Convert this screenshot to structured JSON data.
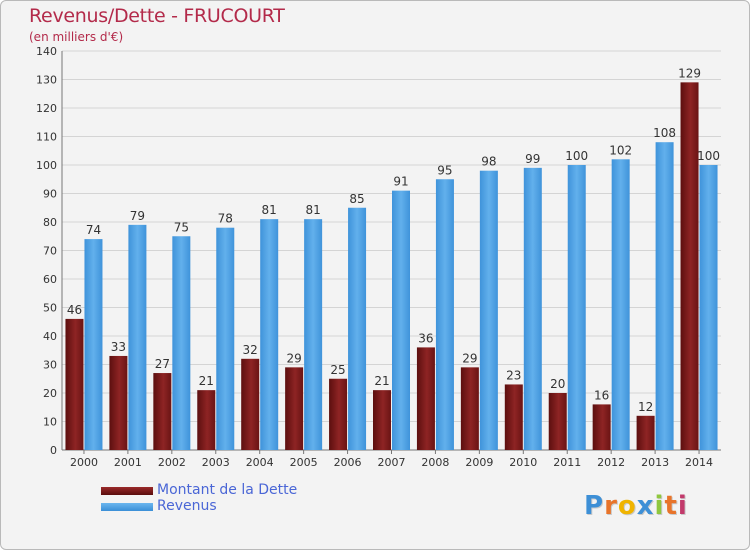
{
  "chart_data": {
    "type": "bar",
    "title": "Revenus/Dette - FRUCOURT",
    "subtitle": "(en milliers d'€)",
    "categories": [
      "2000",
      "2001",
      "2002",
      "2003",
      "2004",
      "2005",
      "2006",
      "2007",
      "2008",
      "2009",
      "2010",
      "2011",
      "2012",
      "2013",
      "2014"
    ],
    "series": [
      {
        "name": "Montant de la Dette",
        "color": "#7a1c1c",
        "values": [
          46,
          33,
          27,
          21,
          32,
          29,
          25,
          21,
          36,
          29,
          23,
          20,
          16,
          12,
          129
        ]
      },
      {
        "name": "Revenus",
        "color": "#4da3e6",
        "values": [
          74,
          79,
          75,
          78,
          81,
          81,
          85,
          91,
          95,
          98,
          99,
          100,
          102,
          108,
          100
        ]
      }
    ],
    "ylim": [
      0,
      140
    ],
    "yticks": [
      0,
      10,
      20,
      30,
      40,
      50,
      60,
      70,
      80,
      90,
      100,
      110,
      120,
      130,
      140
    ],
    "grid": true,
    "legend_position": "bottom-left"
  },
  "logo": {
    "letters": [
      "P",
      "r",
      "o",
      "x",
      "i",
      "t",
      "i"
    ],
    "colors": [
      "#3d8fd6",
      "#e8742a",
      "#f0b400",
      "#3d8fd6",
      "#8fc73e",
      "#e8742a",
      "#c23a6b"
    ]
  }
}
